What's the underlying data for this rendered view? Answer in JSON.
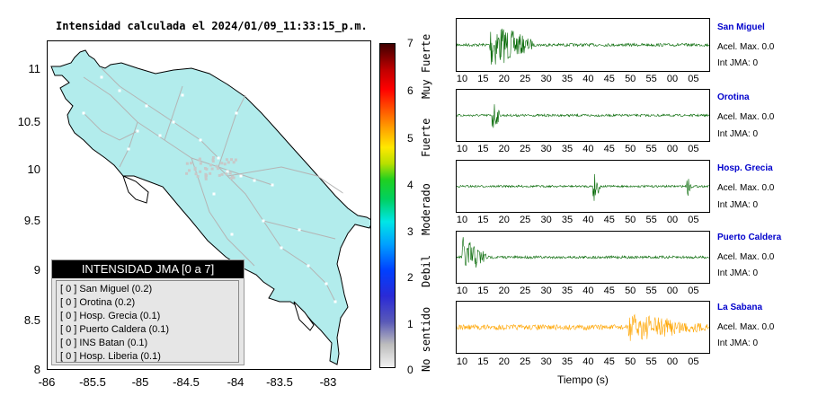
{
  "title": "Intensidad calculada el 2024/01/09_11:33:15_p.m.",
  "map": {
    "yticks": [
      "11",
      "10.5",
      "10",
      "9.5",
      "9",
      "8.5",
      "8"
    ],
    "xticks": [
      "-86",
      "-85.5",
      "-85",
      "-84.5",
      "-84",
      "-83.5",
      "-83"
    ],
    "land_color": "#b2ecec",
    "road_color": "#b4b4b4"
  },
  "colorbar": {
    "ticks": [
      "7",
      "6",
      "5",
      "4",
      "3",
      "2",
      "1",
      "0"
    ],
    "categories": [
      "Muy Fuerte",
      "Fuerte",
      "Moderado",
      "Debil",
      "No sentido"
    ]
  },
  "legend": {
    "title": "INTENSIDAD JMA [0 a 7]",
    "rows": [
      "[ 0 ] San Miguel (0.2)",
      "[ 0 ] Orotina (0.2)",
      "[ 0 ] Hosp. Grecia (0.1)",
      "[ 0 ] Puerto Caldera (0.1)",
      "[ 0 ] INS Batan (0.1)",
      "[ 0 ] Hosp. Liberia (0.1)"
    ]
  },
  "time_ticks": [
    "10",
    "15",
    "20",
    "25",
    "30",
    "35",
    "40",
    "45",
    "50",
    "55",
    "00",
    "05"
  ],
  "stations": [
    {
      "name": "San Miguel",
      "acel": "Acel. Max. 0.0",
      "int": "Int JMA: 0",
      "color": "#006600"
    },
    {
      "name": "Orotina",
      "acel": "Acel. Max. 0.0",
      "int": "Int JMA: 0",
      "color": "#006600"
    },
    {
      "name": "Hosp. Grecia",
      "acel": "Acel. Max. 0.0",
      "int": "Int JMA: 0",
      "color": "#006600"
    },
    {
      "name": "Puerto Caldera",
      "acel": "Acel. Max. 0.0",
      "int": "Int JMA: 0",
      "color": "#006600"
    },
    {
      "name": "La Sabana",
      "acel": "Acel. Max. 0.0",
      "int": "Int JMA: 0",
      "color": "#ffa500"
    }
  ],
  "xlabel": "Tiempo (s)"
}
